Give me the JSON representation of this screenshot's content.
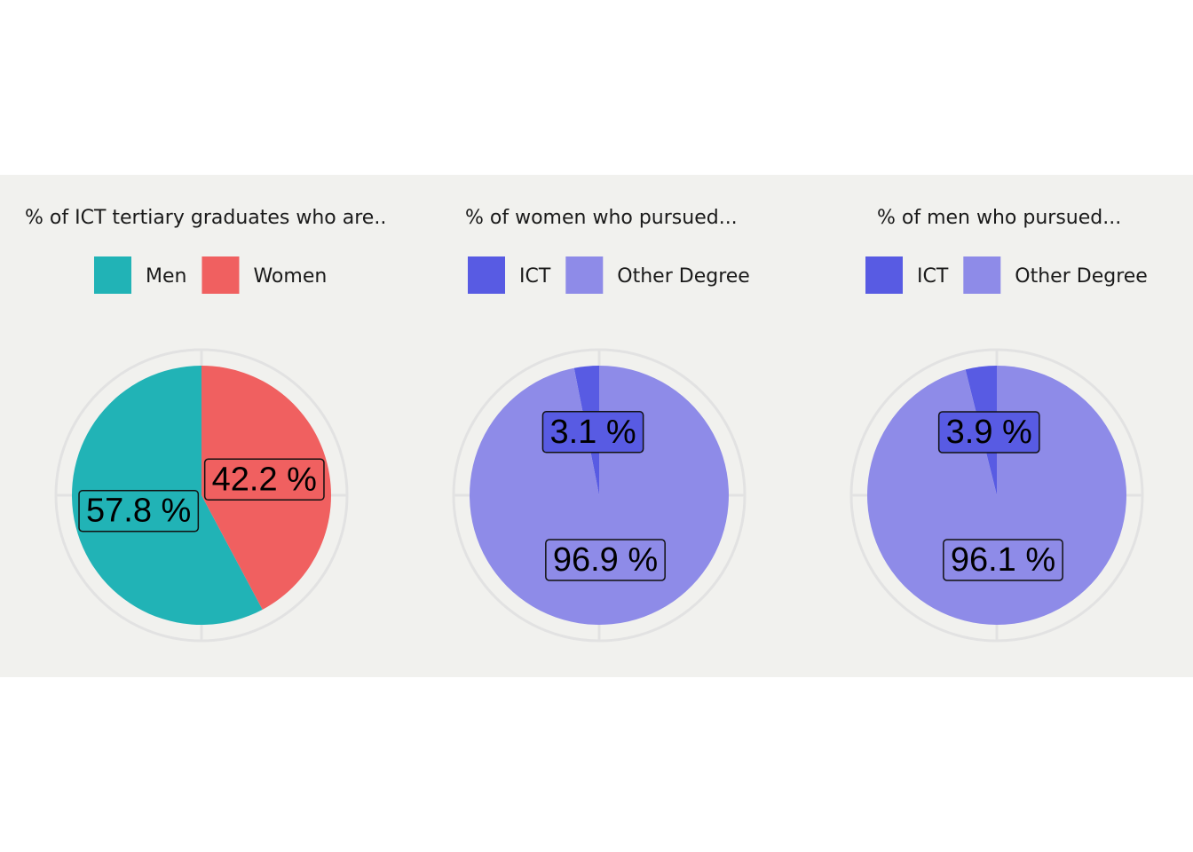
{
  "chart_data": [
    {
      "type": "pie",
      "legend_title": "% of ICT tertiary graduates who are..",
      "categories": [
        "Men",
        "Women"
      ],
      "values": [
        57.8,
        42.2
      ],
      "labels": [
        "57.8 %",
        "42.2 %"
      ],
      "colors": [
        "#21b3b6",
        "#f06060"
      ],
      "legend_position": "top"
    },
    {
      "type": "pie",
      "legend_title": "% of women who pursued...",
      "categories": [
        "ICT",
        "Other Degree"
      ],
      "values": [
        3.1,
        96.9
      ],
      "labels": [
        "3.1 %",
        "96.9 %"
      ],
      "colors": [
        "#585be3",
        "#8e8be8"
      ],
      "legend_position": "top"
    },
    {
      "type": "pie",
      "legend_title": "% of men who pursued...",
      "categories": [
        "ICT",
        "Other Degree"
      ],
      "values": [
        3.9,
        96.1
      ],
      "labels": [
        "3.9 %",
        "96.1 %"
      ],
      "colors": [
        "#585be3",
        "#8e8be8"
      ],
      "legend_position": "top"
    }
  ]
}
